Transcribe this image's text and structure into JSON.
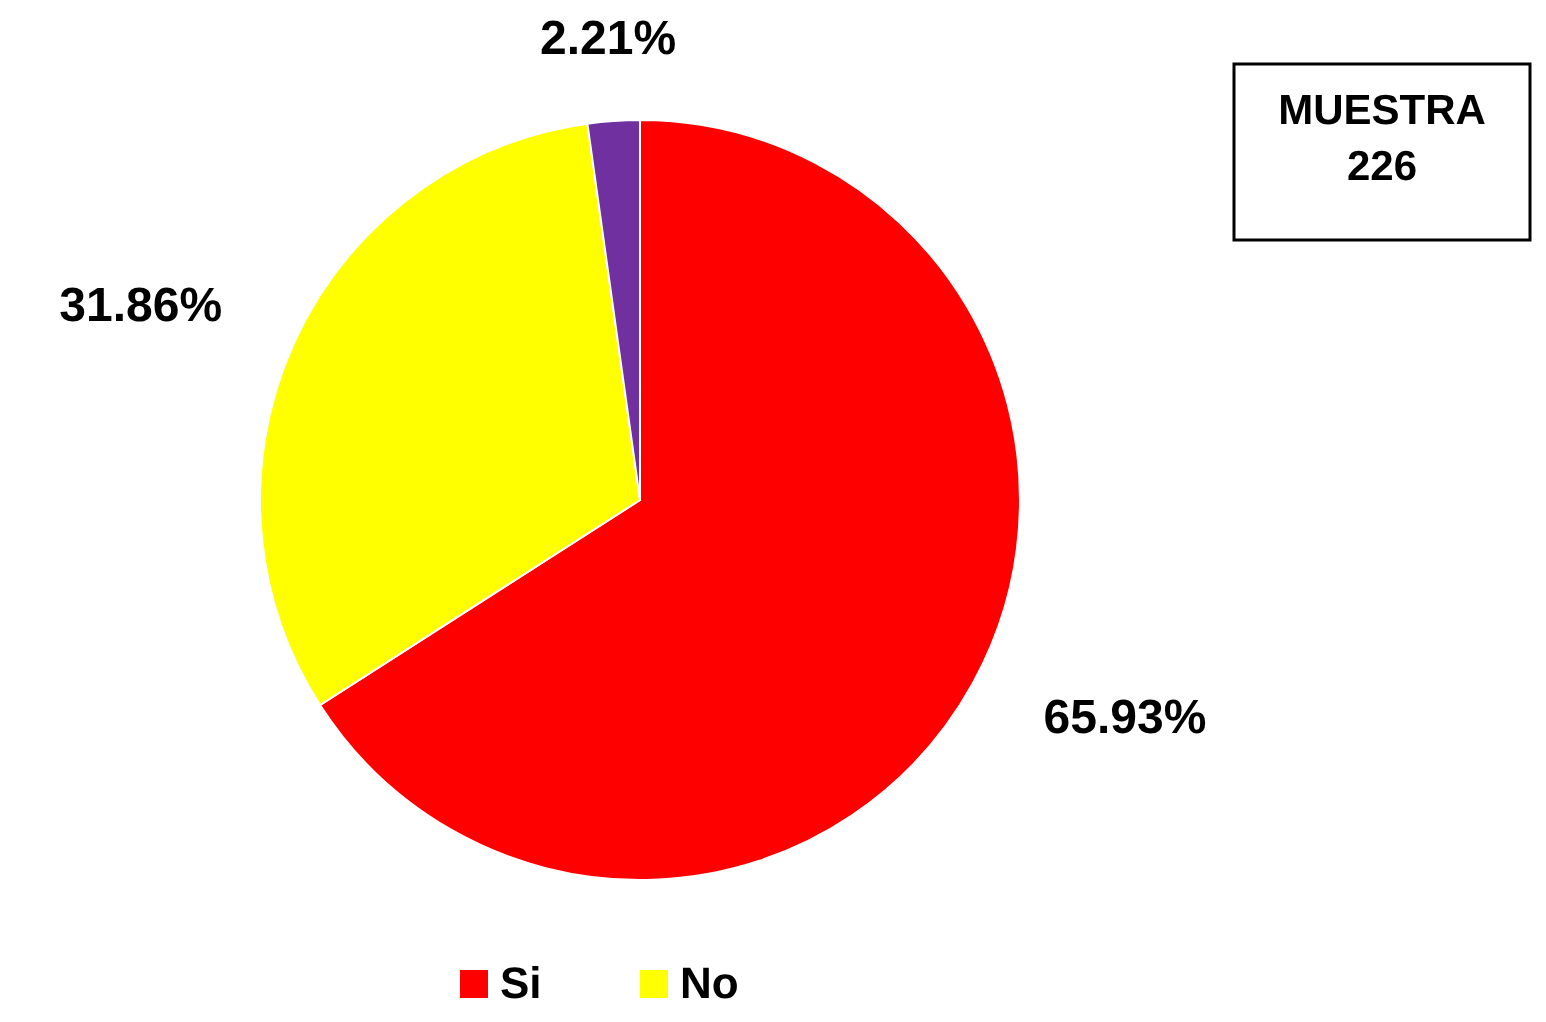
{
  "chart_data": {
    "type": "pie",
    "categories": [
      "Si",
      "No",
      null
    ],
    "values": [
      65.93,
      31.86,
      2.21
    ],
    "colors": [
      "#ff0000",
      "#ffff00",
      "#7030a0"
    ],
    "value_labels": [
      "65.93%",
      "31.86%",
      "2.21%"
    ],
    "annotations": [
      "MUESTRA 226"
    ],
    "legend": "bottom"
  }
}
